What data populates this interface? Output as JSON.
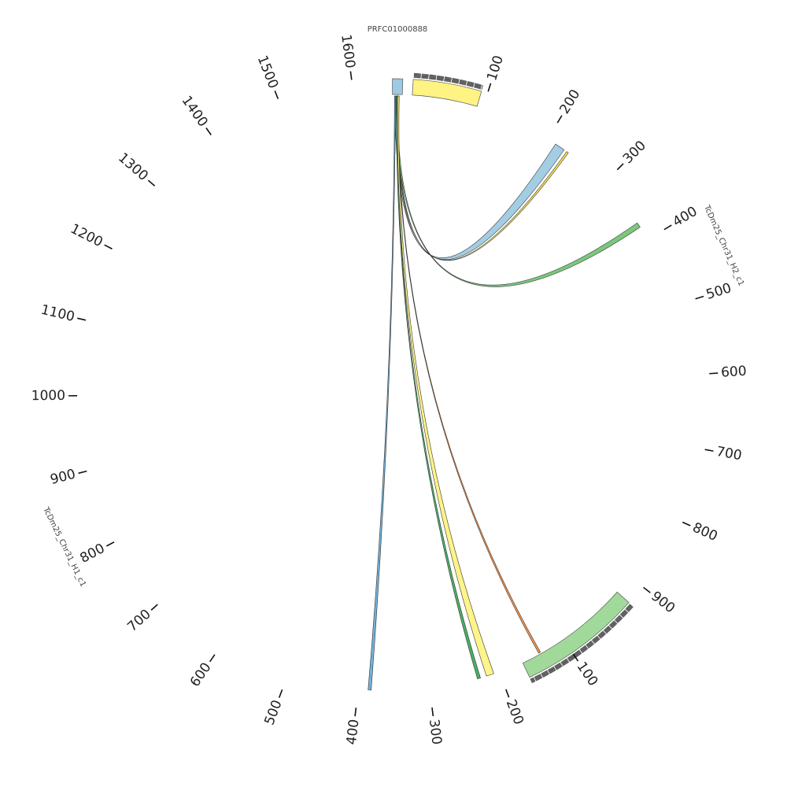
{
  "title": "PRFC01000888",
  "segments": [
    {
      "name": "TcDm25_Chr31_H2_c1",
      "ticks": [
        100,
        200,
        300,
        400,
        500,
        600,
        700,
        800,
        900
      ]
    },
    {
      "name": "TcDm25_Chr31_H1_c1",
      "ticks": [
        100,
        200,
        300,
        400,
        500,
        600,
        700,
        800,
        900,
        1000,
        1100,
        1200,
        1300,
        1400,
        1500,
        1600
      ]
    }
  ]
}
